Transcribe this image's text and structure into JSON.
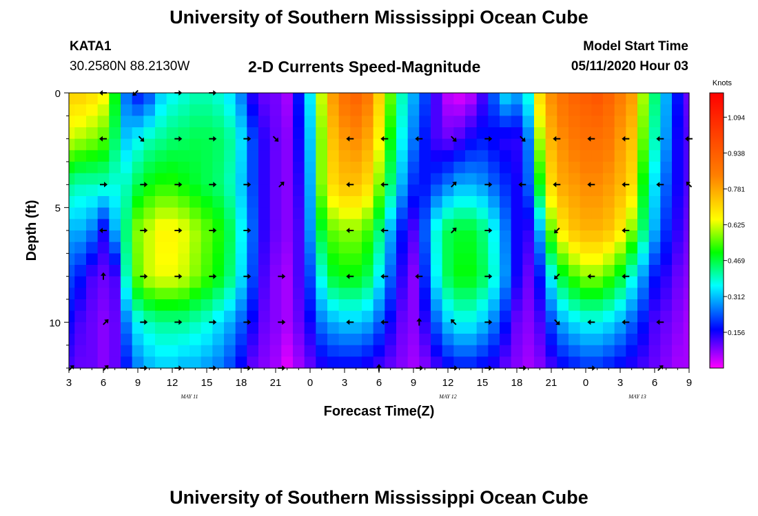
{
  "header": {
    "title": "University of Southern Mississippi Ocean Cube",
    "station_id": "KATA1",
    "station_coords": "30.2580N 88.2130W",
    "subtitle": "2-D Currents Speed-Magnitude",
    "model_start_label": "Model Start Time",
    "model_start_value": "05/11/2020 Hour 03"
  },
  "footer": {
    "title": "University of Southern Mississippi Ocean Cube"
  },
  "chart_data": {
    "type": "heatmap",
    "title": "2-D Currents Speed-Magnitude",
    "xlabel": "Forecast Time(Z)",
    "ylabel": "Depth (ft)",
    "x_hours_range": [
      3,
      57
    ],
    "xticks": [
      {
        "hour": 3,
        "label": "3"
      },
      {
        "hour": 6,
        "label": "6"
      },
      {
        "hour": 9,
        "label": "9"
      },
      {
        "hour": 12,
        "label": "12"
      },
      {
        "hour": 15,
        "label": "15"
      },
      {
        "hour": 18,
        "label": "18"
      },
      {
        "hour": 21,
        "label": "21"
      },
      {
        "hour": 24,
        "label": "0"
      },
      {
        "hour": 27,
        "label": "3"
      },
      {
        "hour": 30,
        "label": "6"
      },
      {
        "hour": 33,
        "label": "9"
      },
      {
        "hour": 36,
        "label": "12"
      },
      {
        "hour": 39,
        "label": "15"
      },
      {
        "hour": 42,
        "label": "18"
      },
      {
        "hour": 45,
        "label": "21"
      },
      {
        "hour": 48,
        "label": "0"
      },
      {
        "hour": 51,
        "label": "3"
      },
      {
        "hour": 54,
        "label": "6"
      },
      {
        "hour": 57,
        "label": "9"
      }
    ],
    "date_labels": [
      {
        "hour": 13.5,
        "label": "MAY 11"
      },
      {
        "hour": 36,
        "label": "MAY 12"
      },
      {
        "hour": 52.5,
        "label": "MAY 13"
      }
    ],
    "ylim": [
      0,
      12
    ],
    "yticks": [
      {
        "depth": 0,
        "label": "0"
      },
      {
        "depth": 5,
        "label": "5"
      },
      {
        "depth": 10,
        "label": "10"
      }
    ],
    "depth_levels": [
      0,
      2,
      4,
      6,
      8,
      10,
      12
    ],
    "time_hours": [
      3,
      4,
      5,
      6,
      7,
      8,
      9,
      10,
      11,
      12,
      13,
      14,
      15,
      16,
      17,
      18,
      19,
      20,
      21,
      22,
      23,
      24,
      25,
      26,
      27,
      28,
      29,
      30,
      31,
      32,
      33,
      34,
      35,
      36,
      37,
      38,
      39,
      40,
      41,
      42,
      43,
      44,
      45,
      46,
      47,
      48,
      49,
      50,
      51,
      52,
      53,
      54,
      55,
      56,
      57
    ],
    "speed_knots": [
      [
        0.72,
        0.72,
        0.7,
        0.66,
        0.5,
        0.25,
        0.18,
        0.22,
        0.32,
        0.36,
        0.38,
        0.4,
        0.4,
        0.38,
        0.34,
        0.26,
        0.14,
        0.1,
        0.09,
        0.06,
        0.18,
        0.35,
        0.62,
        0.8,
        0.88,
        0.92,
        0.86,
        0.72,
        0.56,
        0.4,
        0.3,
        0.22,
        0.12,
        0.04,
        0.02,
        0.04,
        0.12,
        0.24,
        0.34,
        0.3,
        0.38,
        0.7,
        0.82,
        0.88,
        0.92,
        0.94,
        0.96,
        0.92,
        0.85,
        0.8,
        0.6,
        0.44,
        0.3,
        0.18,
        0.1
      ],
      [
        0.62,
        0.6,
        0.58,
        0.55,
        0.45,
        0.32,
        0.36,
        0.4,
        0.42,
        0.44,
        0.45,
        0.46,
        0.46,
        0.45,
        0.42,
        0.34,
        0.22,
        0.14,
        0.1,
        0.08,
        0.16,
        0.32,
        0.58,
        0.74,
        0.8,
        0.82,
        0.78,
        0.66,
        0.5,
        0.36,
        0.26,
        0.18,
        0.12,
        0.1,
        0.12,
        0.16,
        0.18,
        0.16,
        0.14,
        0.14,
        0.26,
        0.6,
        0.76,
        0.82,
        0.86,
        0.88,
        0.88,
        0.86,
        0.8,
        0.74,
        0.56,
        0.4,
        0.28,
        0.16,
        0.12
      ],
      [
        0.42,
        0.4,
        0.4,
        0.4,
        0.38,
        0.4,
        0.46,
        0.5,
        0.52,
        0.52,
        0.5,
        0.48,
        0.46,
        0.44,
        0.4,
        0.32,
        0.22,
        0.14,
        0.1,
        0.08,
        0.14,
        0.3,
        0.58,
        0.7,
        0.74,
        0.74,
        0.7,
        0.58,
        0.44,
        0.3,
        0.2,
        0.18,
        0.22,
        0.26,
        0.3,
        0.3,
        0.28,
        0.24,
        0.2,
        0.16,
        0.24,
        0.5,
        0.7,
        0.78,
        0.8,
        0.82,
        0.82,
        0.8,
        0.76,
        0.7,
        0.5,
        0.34,
        0.24,
        0.16,
        0.12
      ],
      [
        0.3,
        0.3,
        0.26,
        0.16,
        0.3,
        0.44,
        0.58,
        0.62,
        0.66,
        0.66,
        0.64,
        0.6,
        0.56,
        0.52,
        0.46,
        0.36,
        0.24,
        0.14,
        0.1,
        0.08,
        0.12,
        0.28,
        0.48,
        0.56,
        0.58,
        0.58,
        0.54,
        0.44,
        0.3,
        0.18,
        0.12,
        0.24,
        0.38,
        0.46,
        0.48,
        0.48,
        0.44,
        0.36,
        0.26,
        0.16,
        0.14,
        0.3,
        0.56,
        0.68,
        0.74,
        0.76,
        0.76,
        0.74,
        0.68,
        0.58,
        0.44,
        0.3,
        0.2,
        0.14,
        0.1
      ],
      [
        0.22,
        0.18,
        0.12,
        0.1,
        0.12,
        0.4,
        0.56,
        0.62,
        0.64,
        0.64,
        0.62,
        0.58,
        0.54,
        0.5,
        0.44,
        0.34,
        0.22,
        0.12,
        0.08,
        0.06,
        0.12,
        0.22,
        0.38,
        0.48,
        0.5,
        0.5,
        0.46,
        0.36,
        0.24,
        0.14,
        0.08,
        0.2,
        0.36,
        0.46,
        0.5,
        0.5,
        0.46,
        0.38,
        0.28,
        0.16,
        0.1,
        0.18,
        0.36,
        0.48,
        0.54,
        0.58,
        0.58,
        0.54,
        0.48,
        0.38,
        0.28,
        0.18,
        0.14,
        0.1,
        0.08
      ],
      [
        0.16,
        0.12,
        0.1,
        0.08,
        0.1,
        0.26,
        0.36,
        0.4,
        0.42,
        0.42,
        0.42,
        0.4,
        0.38,
        0.34,
        0.3,
        0.24,
        0.16,
        0.1,
        0.08,
        0.06,
        0.1,
        0.16,
        0.26,
        0.3,
        0.32,
        0.32,
        0.3,
        0.24,
        0.16,
        0.1,
        0.08,
        0.14,
        0.24,
        0.32,
        0.36,
        0.36,
        0.32,
        0.26,
        0.18,
        0.1,
        0.08,
        0.12,
        0.22,
        0.3,
        0.34,
        0.36,
        0.36,
        0.34,
        0.3,
        0.24,
        0.18,
        0.12,
        0.1,
        0.08,
        0.06
      ],
      [
        0.12,
        0.1,
        0.1,
        0.08,
        0.1,
        0.18,
        0.26,
        0.3,
        0.32,
        0.32,
        0.3,
        0.3,
        0.28,
        0.26,
        0.22,
        0.16,
        0.1,
        0.08,
        0.06,
        0.02,
        0.06,
        0.1,
        0.14,
        0.16,
        0.16,
        0.16,
        0.14,
        0.12,
        0.1,
        0.08,
        0.06,
        0.08,
        0.12,
        0.16,
        0.18,
        0.18,
        0.16,
        0.14,
        0.1,
        0.08,
        0.06,
        0.08,
        0.12,
        0.16,
        0.18,
        0.2,
        0.2,
        0.18,
        0.16,
        0.14,
        0.12,
        0.1,
        0.08,
        0.06,
        0.06
      ]
    ],
    "colorbar": {
      "label": "Knots",
      "min": 0.0,
      "max": 1.2,
      "ticks": [
        0.156,
        0.312,
        0.469,
        0.625,
        0.781,
        0.938,
        1.094
      ],
      "tick_labels": [
        "0.156",
        "0.312",
        "0.469",
        "0.625",
        "0.781",
        "0.938",
        "1.094"
      ]
    },
    "arrows": [
      {
        "hour": 6,
        "depth": 0,
        "dir": "left"
      },
      {
        "hour": 8.8,
        "depth": 0,
        "dir": "down-left"
      },
      {
        "hour": 12.5,
        "depth": 0,
        "dir": "right"
      },
      {
        "hour": 15.5,
        "depth": 0,
        "dir": "right"
      },
      {
        "hour": 6,
        "depth": 2,
        "dir": "left"
      },
      {
        "hour": 9.3,
        "depth": 2,
        "dir": "down-right"
      },
      {
        "hour": 12.5,
        "depth": 2,
        "dir": "right"
      },
      {
        "hour": 15.5,
        "depth": 2,
        "dir": "right"
      },
      {
        "hour": 18.5,
        "depth": 2,
        "dir": "right"
      },
      {
        "hour": 21,
        "depth": 2,
        "dir": "down-right"
      },
      {
        "hour": 27.5,
        "depth": 2,
        "dir": "left"
      },
      {
        "hour": 30.5,
        "depth": 2,
        "dir": "left"
      },
      {
        "hour": 33.5,
        "depth": 2,
        "dir": "left"
      },
      {
        "hour": 36.5,
        "depth": 2,
        "dir": "down-right"
      },
      {
        "hour": 39.5,
        "depth": 2,
        "dir": "right"
      },
      {
        "hour": 42.5,
        "depth": 2,
        "dir": "down-right"
      },
      {
        "hour": 45.5,
        "depth": 2,
        "dir": "left"
      },
      {
        "hour": 48.5,
        "depth": 2,
        "dir": "left"
      },
      {
        "hour": 51.5,
        "depth": 2,
        "dir": "left"
      },
      {
        "hour": 54.5,
        "depth": 2,
        "dir": "left"
      },
      {
        "hour": 57,
        "depth": 2,
        "dir": "left"
      },
      {
        "hour": 6,
        "depth": 4,
        "dir": "right"
      },
      {
        "hour": 9.5,
        "depth": 4,
        "dir": "right"
      },
      {
        "hour": 12.5,
        "depth": 4,
        "dir": "right"
      },
      {
        "hour": 15.5,
        "depth": 4,
        "dir": "right"
      },
      {
        "hour": 18.5,
        "depth": 4,
        "dir": "right"
      },
      {
        "hour": 21.5,
        "depth": 4,
        "dir": "up-right"
      },
      {
        "hour": 27.5,
        "depth": 4,
        "dir": "left"
      },
      {
        "hour": 30.5,
        "depth": 4,
        "dir": "left"
      },
      {
        "hour": 36.5,
        "depth": 4,
        "dir": "up-right"
      },
      {
        "hour": 39.5,
        "depth": 4,
        "dir": "right"
      },
      {
        "hour": 42.5,
        "depth": 4,
        "dir": "left"
      },
      {
        "hour": 45.5,
        "depth": 4,
        "dir": "left"
      },
      {
        "hour": 48.5,
        "depth": 4,
        "dir": "left"
      },
      {
        "hour": 51.5,
        "depth": 4,
        "dir": "left"
      },
      {
        "hour": 54.5,
        "depth": 4,
        "dir": "left"
      },
      {
        "hour": 57,
        "depth": 4,
        "dir": "up-left"
      },
      {
        "hour": 6,
        "depth": 6,
        "dir": "left"
      },
      {
        "hour": 9.5,
        "depth": 6,
        "dir": "right"
      },
      {
        "hour": 12.5,
        "depth": 6,
        "dir": "right"
      },
      {
        "hour": 15.5,
        "depth": 6,
        "dir": "right"
      },
      {
        "hour": 18.5,
        "depth": 6,
        "dir": "right"
      },
      {
        "hour": 27.5,
        "depth": 6,
        "dir": "left"
      },
      {
        "hour": 30.5,
        "depth": 6,
        "dir": "left"
      },
      {
        "hour": 36.5,
        "depth": 6,
        "dir": "up-right"
      },
      {
        "hour": 39.5,
        "depth": 6,
        "dir": "right"
      },
      {
        "hour": 45.5,
        "depth": 6,
        "dir": "down-left"
      },
      {
        "hour": 51.5,
        "depth": 6,
        "dir": "left"
      },
      {
        "hour": 6,
        "depth": 8,
        "dir": "up"
      },
      {
        "hour": 9.5,
        "depth": 8,
        "dir": "right"
      },
      {
        "hour": 12.5,
        "depth": 8,
        "dir": "right"
      },
      {
        "hour": 15.5,
        "depth": 8,
        "dir": "right"
      },
      {
        "hour": 18.5,
        "depth": 8,
        "dir": "right"
      },
      {
        "hour": 21.5,
        "depth": 8,
        "dir": "right"
      },
      {
        "hour": 27.5,
        "depth": 8,
        "dir": "left"
      },
      {
        "hour": 30.5,
        "depth": 8,
        "dir": "left"
      },
      {
        "hour": 33.5,
        "depth": 8,
        "dir": "left"
      },
      {
        "hour": 39.5,
        "depth": 8,
        "dir": "right"
      },
      {
        "hour": 45.5,
        "depth": 8,
        "dir": "down-left"
      },
      {
        "hour": 48.5,
        "depth": 8,
        "dir": "left"
      },
      {
        "hour": 51.5,
        "depth": 8,
        "dir": "left"
      },
      {
        "hour": 6.2,
        "depth": 10,
        "dir": "up-right"
      },
      {
        "hour": 9.5,
        "depth": 10,
        "dir": "right"
      },
      {
        "hour": 12.5,
        "depth": 10,
        "dir": "right"
      },
      {
        "hour": 15.5,
        "depth": 10,
        "dir": "right"
      },
      {
        "hour": 18.5,
        "depth": 10,
        "dir": "right"
      },
      {
        "hour": 21.5,
        "depth": 10,
        "dir": "right"
      },
      {
        "hour": 27.5,
        "depth": 10,
        "dir": "left"
      },
      {
        "hour": 30.5,
        "depth": 10,
        "dir": "left"
      },
      {
        "hour": 33.5,
        "depth": 10,
        "dir": "up"
      },
      {
        "hour": 36.5,
        "depth": 10,
        "dir": "up-left"
      },
      {
        "hour": 39.5,
        "depth": 10,
        "dir": "right"
      },
      {
        "hour": 45.5,
        "depth": 10,
        "dir": "down-right"
      },
      {
        "hour": 48.5,
        "depth": 10,
        "dir": "left"
      },
      {
        "hour": 51.5,
        "depth": 10,
        "dir": "left"
      },
      {
        "hour": 54.5,
        "depth": 10,
        "dir": "left"
      },
      {
        "hour": 3.2,
        "depth": 12,
        "dir": "up-right"
      },
      {
        "hour": 6.2,
        "depth": 12,
        "dir": "up-right"
      },
      {
        "hour": 9.5,
        "depth": 12,
        "dir": "right"
      },
      {
        "hour": 12.5,
        "depth": 12,
        "dir": "right"
      },
      {
        "hour": 15.5,
        "depth": 12,
        "dir": "right"
      },
      {
        "hour": 18.5,
        "depth": 12,
        "dir": "right"
      },
      {
        "hour": 21.5,
        "depth": 12,
        "dir": "right"
      },
      {
        "hour": 30,
        "depth": 12,
        "dir": "up"
      },
      {
        "hour": 33.5,
        "depth": 12,
        "dir": "right"
      },
      {
        "hour": 36.5,
        "depth": 12,
        "dir": "right"
      },
      {
        "hour": 39.5,
        "depth": 12,
        "dir": "right"
      },
      {
        "hour": 42.5,
        "depth": 12,
        "dir": "right"
      },
      {
        "hour": 48.5,
        "depth": 12,
        "dir": "right"
      },
      {
        "hour": 54.5,
        "depth": 12,
        "dir": "up-right"
      }
    ]
  }
}
